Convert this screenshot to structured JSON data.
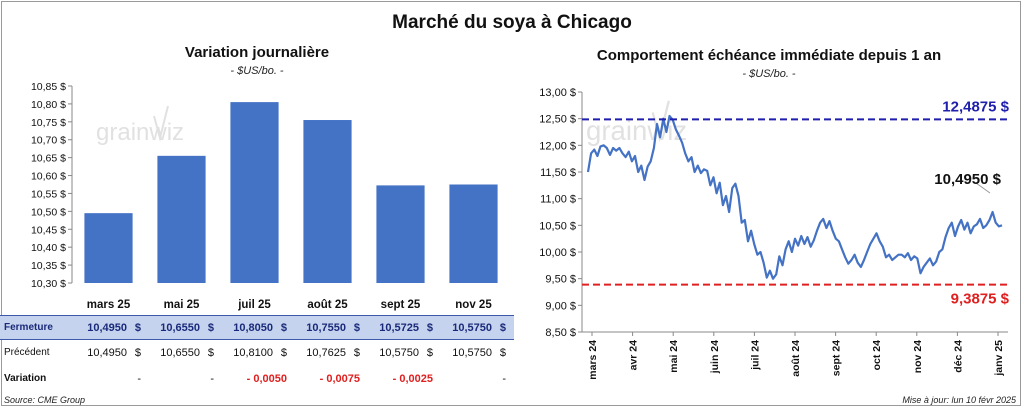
{
  "main_title": "Marché du soya à Chicago",
  "watermark": "grainwiz",
  "left_chart": {
    "title": "Variation journalière",
    "unit": "- $US/bo. -"
  },
  "right_chart": {
    "title": "Comportement échéance immédiate depuis 1 an",
    "unit": "- $US/bo. -"
  },
  "table": {
    "rows": [
      {
        "label": "Fermeture",
        "values": [
          "10,4950",
          "10,6550",
          "10,8050",
          "10,7550",
          "10,5725",
          "10,5750"
        ],
        "dollar": "$"
      },
      {
        "label": "Précédent",
        "values": [
          "10,4950",
          "10,6550",
          "10,8100",
          "10,7625",
          "10,5750",
          "10,5750"
        ],
        "dollar": "$"
      },
      {
        "label": "Variation",
        "values": [
          "-",
          "-",
          "- 0,0050",
          "- 0,0075",
          "- 0,0025",
          "-"
        ]
      }
    ]
  },
  "footer": {
    "source": "Source: CME Group",
    "updated": "Mise à jour: lun 10 févr 2025"
  },
  "chart_data": [
    {
      "type": "bar",
      "title": "Variation journalière",
      "unit": "- $US/bo. -",
      "categories": [
        "mars 25",
        "mai 25",
        "juil 25",
        "août 25",
        "sept 25",
        "nov 25"
      ],
      "values": [
        10.495,
        10.655,
        10.805,
        10.755,
        10.5725,
        10.575
      ],
      "ylim": [
        10.3,
        10.85
      ],
      "y_ticks": [
        "10,30 $",
        "10,35 $",
        "10,40 $",
        "10,45 $",
        "10,50 $",
        "10,55 $",
        "10,60 $",
        "10,65 $",
        "10,70 $",
        "10,75 $",
        "10,80 $",
        "10,85 $"
      ],
      "color": "#4472c4",
      "grid": false
    },
    {
      "type": "line",
      "title": "Comportement échéance immédiate depuis 1 an",
      "unit": "- $US/bo. -",
      "x_ticks": [
        "mars 24",
        "avr 24",
        "mai 24",
        "juin 24",
        "juil 24",
        "août 24",
        "sept 24",
        "oct 24",
        "nov 24",
        "déc 24",
        "janv 25"
      ],
      "y_ticks": [
        "8,50 $",
        "9,00 $",
        "9,50 $",
        "10,00 $",
        "10,50 $",
        "11,00 $",
        "11,50 $",
        "12,00 $",
        "12,50 $",
        "13,00 $"
      ],
      "ylim": [
        8.5,
        13.0
      ],
      "values": [
        11.5,
        11.85,
        11.92,
        11.8,
        11.98,
        12.0,
        11.95,
        11.82,
        11.95,
        11.9,
        11.95,
        11.85,
        11.78,
        11.88,
        11.7,
        11.8,
        11.5,
        11.62,
        11.35,
        11.6,
        11.7,
        11.95,
        12.4,
        12.15,
        12.5,
        12.25,
        12.55,
        12.48,
        12.3,
        12.18,
        12.05,
        11.85,
        11.7,
        11.78,
        11.5,
        11.62,
        11.48,
        11.55,
        11.52,
        11.25,
        11.4,
        11.1,
        11.3,
        10.88,
        11.05,
        10.75,
        11.2,
        11.28,
        11.05,
        10.55,
        10.6,
        10.2,
        10.4,
        10.15,
        9.95,
        10.0,
        9.8,
        9.52,
        9.65,
        9.5,
        9.58,
        9.92,
        9.75,
        10.05,
        10.2,
        10.0,
        10.25,
        10.12,
        10.3,
        10.15,
        10.28,
        10.1,
        10.22,
        10.4,
        10.55,
        10.62,
        10.45,
        10.58,
        10.4,
        10.25,
        10.2,
        10.05,
        9.9,
        9.78,
        9.85,
        9.95,
        9.8,
        9.72,
        9.85,
        10.0,
        10.15,
        10.25,
        10.35,
        10.2,
        10.1,
        9.9,
        9.95,
        9.85,
        9.9,
        9.95,
        9.95,
        9.9,
        9.98,
        9.85,
        9.92,
        9.88,
        9.6,
        9.72,
        9.8,
        9.88,
        9.75,
        9.82,
        10.0,
        10.05,
        10.28,
        10.45,
        10.55,
        10.3,
        10.48,
        10.6,
        10.42,
        10.55,
        10.35,
        10.48,
        10.52,
        10.62,
        10.45,
        10.5,
        10.6,
        10.75,
        10.55,
        10.48,
        10.5
      ],
      "series": [
        {
          "values_ref": "values",
          "color": "#4472c4"
        }
      ],
      "reference_lines": [
        {
          "value": 12.4875,
          "label": "12,4875 $",
          "color": "#1f1fae"
        },
        {
          "value": 9.3875,
          "label": "9,3875 $",
          "color": "#e02020"
        }
      ],
      "annotation": {
        "label": "10,4950 $",
        "value": 10.495
      }
    }
  ]
}
